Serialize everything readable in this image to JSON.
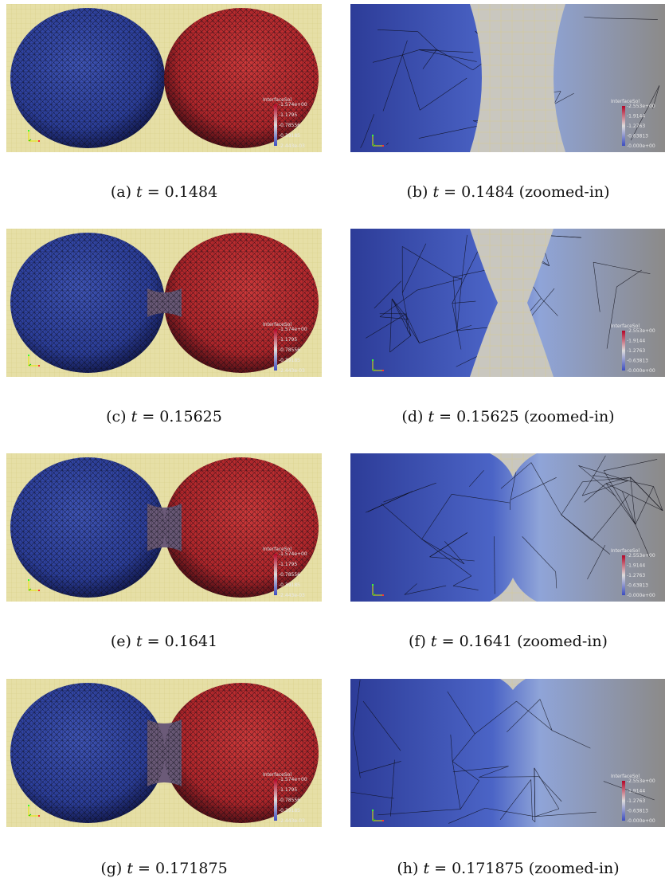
{
  "figures": [
    {
      "label": "(a)",
      "t": "0.1484",
      "zoom": "",
      "phase": 0,
      "colorbar": {
        "title": "InterfaceSol",
        "ticks": [
          "1.574e+00",
          "1.1795",
          "0.78556",
          "0.39185",
          "2.443e-03"
        ]
      }
    },
    {
      "label": "(b)",
      "t": "0.1484",
      "zoom": "(zoomed-in)",
      "phase": 0,
      "colorbar": {
        "title": "InterfaceSol",
        "ticks": [
          "2.553e+00",
          "1.9144",
          "1.2763",
          "0.63813",
          "0.000e+00"
        ]
      }
    },
    {
      "label": "(c)",
      "t": "0.15625",
      "zoom": "",
      "phase": 1,
      "colorbar": {
        "title": "InterfaceSol",
        "ticks": [
          "1.574e+00",
          "1.1795",
          "0.78556",
          "0.39185",
          "2.443e-03"
        ]
      }
    },
    {
      "label": "(d)",
      "t": "0.15625",
      "zoom": "(zoomed-in)",
      "phase": 1,
      "colorbar": {
        "title": "InterfaceSol",
        "ticks": [
          "2.553e+00",
          "1.9144",
          "1.2763",
          "0.63813",
          "0.000e+00"
        ]
      }
    },
    {
      "label": "(e)",
      "t": "0.1641",
      "zoom": "",
      "phase": 2,
      "colorbar": {
        "title": "InterfaceSol",
        "ticks": [
          "1.574e+00",
          "1.1795",
          "0.78556",
          "0.39185",
          "2.443e-03"
        ]
      }
    },
    {
      "label": "(f)",
      "t": "0.1641",
      "zoom": "(zoomed-in)",
      "phase": 2,
      "colorbar": {
        "title": "InterfaceSol",
        "ticks": [
          "2.553e+00",
          "1.9144",
          "1.2763",
          "0.63813",
          "0.000e+00"
        ]
      }
    },
    {
      "label": "(g)",
      "t": "0.171875",
      "zoom": "",
      "phase": 3,
      "colorbar": {
        "title": "InterfaceSol",
        "ticks": [
          "1.574e+00",
          "1.1795",
          "0.78556",
          "0.39185",
          "2.443e-03"
        ]
      }
    },
    {
      "label": "(h)",
      "t": "0.171875",
      "zoom": "(zoomed-in)",
      "phase": 3,
      "colorbar": {
        "title": "InterfaceSol",
        "ticks": [
          "2.553e+00",
          "1.9144",
          "1.2763",
          "0.63813",
          "0.000e+00"
        ]
      }
    }
  ],
  "colors": {
    "background_full": "#e6dfa6",
    "background_zoom": "#c9c7bf",
    "blue_droplet": "#2c3f9c",
    "red_droplet": "#b3262a",
    "grey_droplet": "#8c8a88",
    "mesh_line": "#0b0b14"
  }
}
